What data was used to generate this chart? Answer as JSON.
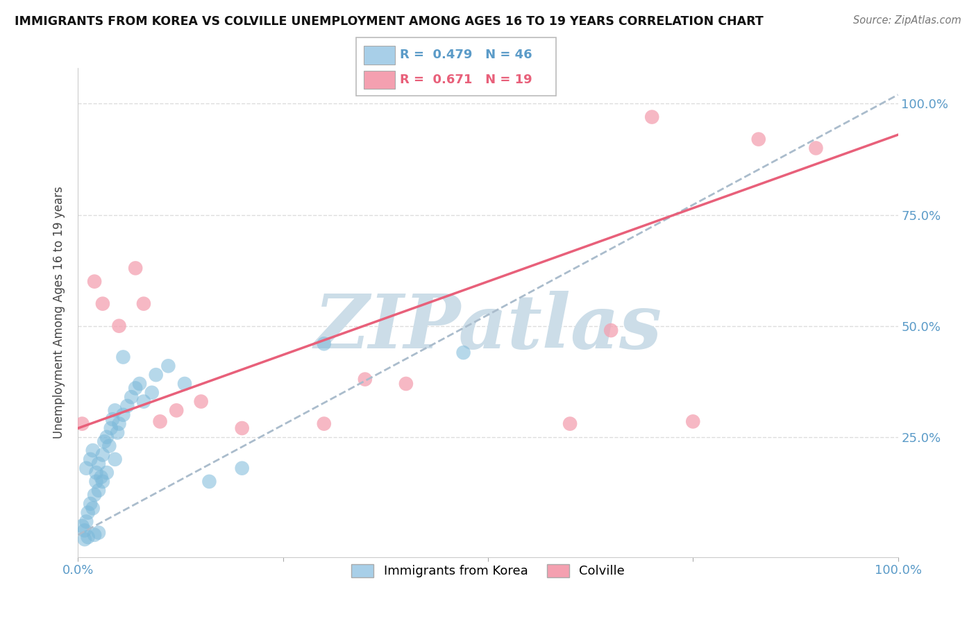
{
  "title": "IMMIGRANTS FROM KOREA VS COLVILLE UNEMPLOYMENT AMONG AGES 16 TO 19 YEARS CORRELATION CHART",
  "source_text": "Source: ZipAtlas.com",
  "ylabel": "Unemployment Among Ages 16 to 19 years",
  "xlim": [
    0.0,
    1.0
  ],
  "ylim": [
    -0.02,
    1.08
  ],
  "blue_R": 0.479,
  "blue_N": 46,
  "pink_R": 0.671,
  "pink_N": 19,
  "blue_color": "#7ab8d9",
  "blue_legend_color": "#a8cfe8",
  "pink_color": "#f4a0b0",
  "pink_line_color": "#e8607a",
  "dashed_line_color": "#aabccc",
  "blue_line_color": "#4a90c8",
  "tick_color": "#5b9bc8",
  "watermark_color": "#ccdde8",
  "legend_label_blue": "Immigrants from Korea",
  "legend_label_pink": "Colville",
  "blue_x": [
    0.005,
    0.008,
    0.01,
    0.012,
    0.015,
    0.018,
    0.02,
    0.022,
    0.025,
    0.028,
    0.01,
    0.015,
    0.018,
    0.022,
    0.025,
    0.03,
    0.032,
    0.035,
    0.038,
    0.04,
    0.042,
    0.045,
    0.048,
    0.05,
    0.055,
    0.06,
    0.065,
    0.07,
    0.08,
    0.09,
    0.008,
    0.012,
    0.02,
    0.025,
    0.03,
    0.035,
    0.045,
    0.055,
    0.075,
    0.095,
    0.11,
    0.13,
    0.16,
    0.2,
    0.3,
    0.47
  ],
  "blue_y": [
    0.05,
    0.04,
    0.06,
    0.08,
    0.1,
    0.09,
    0.12,
    0.15,
    0.13,
    0.16,
    0.18,
    0.2,
    0.22,
    0.17,
    0.19,
    0.21,
    0.24,
    0.25,
    0.23,
    0.27,
    0.29,
    0.31,
    0.26,
    0.28,
    0.3,
    0.32,
    0.34,
    0.36,
    0.33,
    0.35,
    0.02,
    0.025,
    0.03,
    0.035,
    0.15,
    0.17,
    0.2,
    0.43,
    0.37,
    0.39,
    0.41,
    0.37,
    0.15,
    0.18,
    0.46,
    0.44
  ],
  "pink_x": [
    0.005,
    0.02,
    0.03,
    0.05,
    0.07,
    0.08,
    0.1,
    0.12,
    0.15,
    0.2,
    0.3,
    0.35,
    0.4,
    0.6,
    0.65,
    0.7,
    0.75,
    0.83,
    0.9
  ],
  "pink_y": [
    0.28,
    0.6,
    0.55,
    0.5,
    0.63,
    0.55,
    0.285,
    0.31,
    0.33,
    0.27,
    0.28,
    0.38,
    0.37,
    0.28,
    0.49,
    0.97,
    0.285,
    0.92,
    0.9
  ],
  "blue_line_x0": 0.0,
  "blue_line_y0": 0.03,
  "blue_line_x1": 1.0,
  "blue_line_y1": 1.02,
  "pink_line_x0": 0.0,
  "pink_line_y0": 0.27,
  "pink_line_x1": 1.0,
  "pink_line_y1": 0.93,
  "background_color": "#ffffff",
  "grid_color": "#dddddd"
}
